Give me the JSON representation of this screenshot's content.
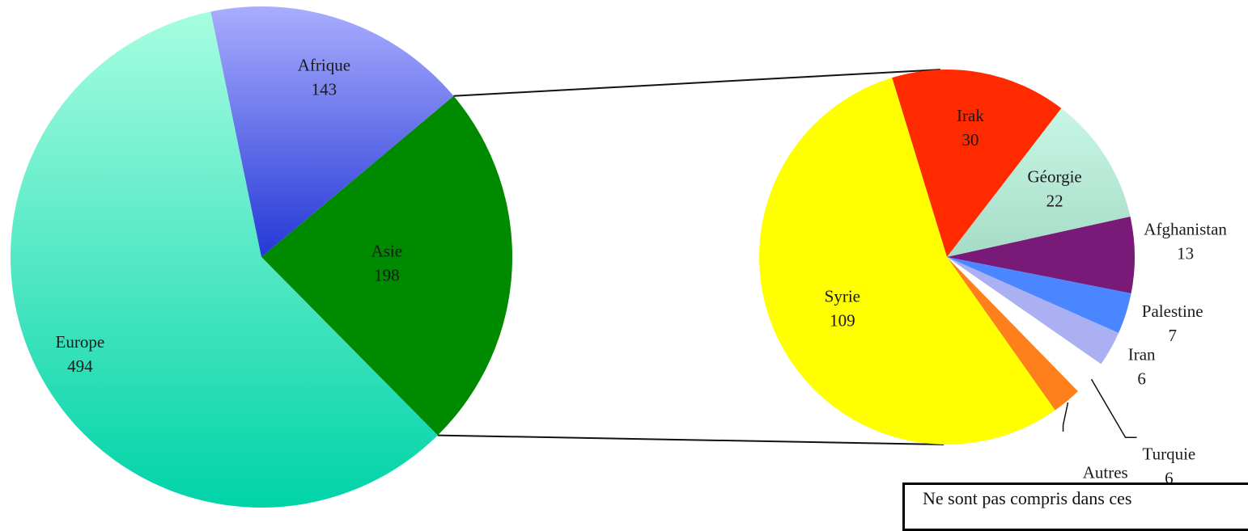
{
  "chart_data": [
    {
      "type": "pie",
      "categories": [
        "Afrique",
        "Asie",
        "Europe"
      ],
      "values": [
        143,
        198,
        494
      ],
      "slices": [
        {
          "label": "Afrique",
          "value": 143,
          "color": "#6f79ea"
        },
        {
          "label": "Asie",
          "value": 198,
          "color": "#008a00"
        },
        {
          "label": "Europe",
          "value": 494,
          "color": "#3ee0b8"
        }
      ]
    },
    {
      "type": "pie",
      "categories": [
        "Irak",
        "Géorgie",
        "Afghanistan",
        "Palestine",
        "Iran",
        "Turquie",
        "Autres",
        "Syrie"
      ],
      "values": [
        30,
        22,
        13,
        7,
        6,
        6,
        5,
        109
      ],
      "slices": [
        {
          "label": "Irak",
          "value": 30,
          "color": "#ff2a00"
        },
        {
          "label": "Géorgie",
          "value": 22,
          "color": "#b5ead8"
        },
        {
          "label": "Afghanistan",
          "value": 13,
          "color": "#7a1a78"
        },
        {
          "label": "Palestine",
          "value": 7,
          "color": "#4a86ff"
        },
        {
          "label": "Iran",
          "value": 6,
          "color": "#aab0f2"
        },
        {
          "label": "Turquie",
          "value": 6,
          "color": "#ffffff"
        },
        {
          "label": "Autres",
          "value": 5,
          "color": "#ff7f1a"
        },
        {
          "label": "Syrie",
          "value": 109,
          "color": "#ffff00"
        }
      ]
    }
  ],
  "note": {
    "text": "Ne sont pas compris dans ces"
  }
}
